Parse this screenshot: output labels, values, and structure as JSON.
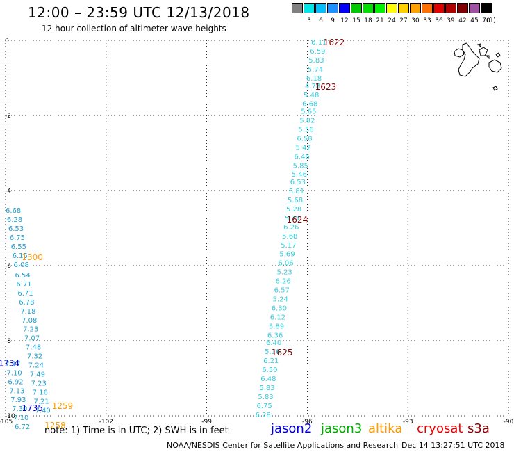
{
  "header": {
    "title": "12:00 – 23:59 UTC 12/13/2018",
    "subtitle": "12 hour collection of altimeter wave heights"
  },
  "legend": {
    "unit_label": "(ft)",
    "items": [
      {
        "label": "",
        "color": "#808080"
      },
      {
        "label": "3",
        "color": "#00e5e5"
      },
      {
        "label": "6",
        "color": "#00bfff"
      },
      {
        "label": "9",
        "color": "#1e90ff"
      },
      {
        "label": "12",
        "color": "#0000ff"
      },
      {
        "label": "15",
        "color": "#00c800"
      },
      {
        "label": "18",
        "color": "#00e000"
      },
      {
        "label": "21",
        "color": "#00f000"
      },
      {
        "label": "24",
        "color": "#ffff00"
      },
      {
        "label": "27",
        "color": "#ffd000"
      },
      {
        "label": "30",
        "color": "#ffa000"
      },
      {
        "label": "33",
        "color": "#ff7000"
      },
      {
        "label": "36",
        "color": "#e00000"
      },
      {
        "label": "39",
        "color": "#b00000"
      },
      {
        "label": "42",
        "color": "#800000"
      },
      {
        "label": "45",
        "color": "#a050a0"
      },
      {
        "label": "70",
        "color": "#000000"
      }
    ]
  },
  "map": {
    "x_ticks": [
      "-105",
      "-102",
      "-99",
      "-96",
      "-93",
      "-90"
    ],
    "y_ticks": [
      "0",
      "-2",
      "-4",
      "-6",
      "-8",
      "-10"
    ],
    "tracks": [
      {
        "name": "pass-east",
        "color": "#33ccdd",
        "points": [
          {
            "lon": -95.65,
            "lat": -0.04,
            "v": "6.11"
          },
          {
            "lon": -95.69,
            "lat": -0.28,
            "v": "6.59"
          },
          {
            "lon": -95.73,
            "lat": -0.52,
            "v": "5.83"
          },
          {
            "lon": -95.76,
            "lat": -0.76,
            "v": "5.74"
          },
          {
            "lon": -95.8,
            "lat": -1.0,
            "v": "6.18"
          },
          {
            "lon": -95.84,
            "lat": -1.2,
            "v": "4.78"
          },
          {
            "lon": -95.88,
            "lat": -1.44,
            "v": "5.48"
          },
          {
            "lon": -95.92,
            "lat": -1.68,
            "v": "6.68"
          },
          {
            "lon": -95.96,
            "lat": -1.88,
            "v": "5.65"
          },
          {
            "lon": -96.0,
            "lat": -2.12,
            "v": "5.82"
          },
          {
            "lon": -96.04,
            "lat": -2.36,
            "v": "5.56"
          },
          {
            "lon": -96.08,
            "lat": -2.6,
            "v": "6.58"
          },
          {
            "lon": -96.12,
            "lat": -2.84,
            "v": "5.42"
          },
          {
            "lon": -96.16,
            "lat": -3.08,
            "v": "6.46"
          },
          {
            "lon": -96.2,
            "lat": -3.32,
            "v": "5.85"
          },
          {
            "lon": -96.24,
            "lat": -3.56,
            "v": "5.46"
          },
          {
            "lon": -96.28,
            "lat": -3.76,
            "v": "6.53"
          },
          {
            "lon": -96.32,
            "lat": -4.0,
            "v": "5.81"
          },
          {
            "lon": -96.36,
            "lat": -4.24,
            "v": "5.68"
          },
          {
            "lon": -96.4,
            "lat": -4.48,
            "v": "5.28"
          },
          {
            "lon": -96.44,
            "lat": -4.72,
            "v": "5.71"
          },
          {
            "lon": -96.48,
            "lat": -4.96,
            "v": "6.26"
          },
          {
            "lon": -96.52,
            "lat": -5.2,
            "v": "5.68"
          },
          {
            "lon": -96.56,
            "lat": -5.44,
            "v": "5.17"
          },
          {
            "lon": -96.6,
            "lat": -5.68,
            "v": "5.69"
          },
          {
            "lon": -96.64,
            "lat": -5.92,
            "v": "6.06"
          },
          {
            "lon": -96.68,
            "lat": -6.16,
            "v": "5.23"
          },
          {
            "lon": -96.72,
            "lat": -6.4,
            "v": "6.26"
          },
          {
            "lon": -96.76,
            "lat": -6.64,
            "v": "6.57"
          },
          {
            "lon": -96.8,
            "lat": -6.88,
            "v": "5.24"
          },
          {
            "lon": -96.84,
            "lat": -7.12,
            "v": "6.30"
          },
          {
            "lon": -96.88,
            "lat": -7.36,
            "v": "6.12"
          },
          {
            "lon": -96.92,
            "lat": -7.6,
            "v": "5.89"
          },
          {
            "lon": -96.96,
            "lat": -7.84,
            "v": "6.36"
          },
          {
            "lon": -97.0,
            "lat": -8.04,
            "v": "6.40"
          },
          {
            "lon": -97.04,
            "lat": -8.28,
            "v": "5.16"
          },
          {
            "lon": -97.08,
            "lat": -8.52,
            "v": "6.21"
          },
          {
            "lon": -97.12,
            "lat": -8.76,
            "v": "6.50"
          },
          {
            "lon": -97.16,
            "lat": -9.0,
            "v": "6.48"
          },
          {
            "lon": -97.2,
            "lat": -9.24,
            "v": "5.83"
          },
          {
            "lon": -97.24,
            "lat": -9.48,
            "v": "5.83"
          },
          {
            "lon": -97.28,
            "lat": -9.72,
            "v": "6.75"
          },
          {
            "lon": -97.32,
            "lat": -9.96,
            "v": "6.28"
          }
        ]
      },
      {
        "name": "pass-west",
        "color": "#1ea0d0",
        "points": [
          {
            "lon": -104.77,
            "lat": -4.52,
            "v": "6.68"
          },
          {
            "lon": -104.73,
            "lat": -4.76,
            "v": "6.28"
          },
          {
            "lon": -104.69,
            "lat": -5.0,
            "v": "6.53"
          },
          {
            "lon": -104.65,
            "lat": -5.24,
            "v": "6.75"
          },
          {
            "lon": -104.61,
            "lat": -5.48,
            "v": "6.55"
          },
          {
            "lon": -104.57,
            "lat": -5.72,
            "v": "6.15"
          },
          {
            "lon": -104.53,
            "lat": -5.96,
            "v": "6.08"
          },
          {
            "lon": -104.49,
            "lat": -6.24,
            "v": "6.54"
          },
          {
            "lon": -104.45,
            "lat": -6.48,
            "v": "6.71"
          },
          {
            "lon": -104.41,
            "lat": -6.72,
            "v": "6.71"
          },
          {
            "lon": -104.37,
            "lat": -6.96,
            "v": "6.78"
          },
          {
            "lon": -104.33,
            "lat": -7.2,
            "v": "7.18"
          },
          {
            "lon": -104.29,
            "lat": -7.44,
            "v": "7.08"
          },
          {
            "lon": -104.25,
            "lat": -7.68,
            "v": "7.23"
          },
          {
            "lon": -104.21,
            "lat": -7.92,
            "v": "7.07"
          },
          {
            "lon": -104.17,
            "lat": -8.16,
            "v": "7.48"
          },
          {
            "lon": -104.13,
            "lat": -8.4,
            "v": "7.32"
          },
          {
            "lon": -104.09,
            "lat": -8.64,
            "v": "7.24"
          },
          {
            "lon": -104.05,
            "lat": -8.88,
            "v": "7.49"
          },
          {
            "lon": -104.01,
            "lat": -9.12,
            "v": "7.23"
          },
          {
            "lon": -103.97,
            "lat": -9.36,
            "v": "7.16"
          },
          {
            "lon": -103.93,
            "lat": -9.6,
            "v": "7.21"
          },
          {
            "lon": -103.89,
            "lat": -9.84,
            "v": "7.40"
          }
        ]
      },
      {
        "name": "pass-southwest",
        "color": "#1ea0d0",
        "points": [
          {
            "lon": -104.78,
            "lat": -8.6,
            "v": "7.17"
          },
          {
            "lon": -104.74,
            "lat": -8.84,
            "v": "7.10"
          },
          {
            "lon": -104.7,
            "lat": -9.08,
            "v": "6.92"
          },
          {
            "lon": -104.66,
            "lat": -9.32,
            "v": "7.13"
          },
          {
            "lon": -104.62,
            "lat": -9.56,
            "v": "7.93"
          },
          {
            "lon": -104.58,
            "lat": -9.8,
            "v": "7.30"
          },
          {
            "lon": -104.54,
            "lat": -10.04,
            "v": "7.10"
          },
          {
            "lon": -104.5,
            "lat": -10.28,
            "v": "6.72"
          }
        ]
      }
    ],
    "time_labels": [
      {
        "lon": -95.2,
        "lat": -0.04,
        "t": "1622",
        "color": "#800000"
      },
      {
        "lon": -95.45,
        "lat": -1.22,
        "t": "1623",
        "color": "#800000"
      },
      {
        "lon": -96.3,
        "lat": -4.76,
        "t": "1624",
        "color": "#800000"
      },
      {
        "lon": -96.75,
        "lat": -8.3,
        "t": "1625",
        "color": "#800000"
      },
      {
        "lon": -104.2,
        "lat": -5.76,
        "t": "1300",
        "color": "#ff9900"
      },
      {
        "lon": -104.9,
        "lat": -8.58,
        "t": "1734",
        "color": "#0000cc"
      },
      {
        "lon": -104.2,
        "lat": -9.78,
        "t": "1735",
        "color": "#0000cc"
      },
      {
        "lon": -103.3,
        "lat": -9.72,
        "t": "1259",
        "color": "#ff9900"
      },
      {
        "lon": -103.52,
        "lat": -10.24,
        "t": "1258",
        "color": "#ff9900"
      }
    ]
  },
  "footer": {
    "note": "note: 1) Time is in UTC; 2) SWH is in feet",
    "satellites": [
      {
        "label": "jason2",
        "color": "#0000dd"
      },
      {
        "label": "jason3",
        "color": "#00aa00"
      },
      {
        "label": "altika",
        "color": "#ff9900"
      },
      {
        "label": "cryosat",
        "color": "#ee0000"
      },
      {
        "label": "s3a",
        "color": "#880000"
      }
    ],
    "credit": "NOAA/NESDIS Center for Satellite Applications and Research",
    "timestamp": "Dec 14 13:27:51 UTC 2018"
  }
}
